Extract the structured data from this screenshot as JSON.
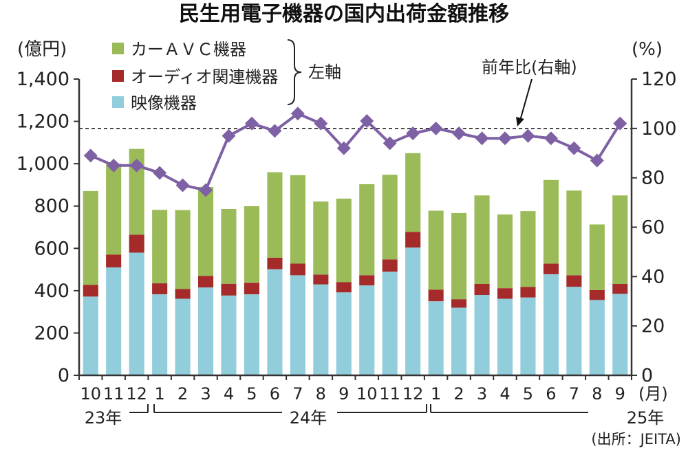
{
  "chart_data": {
    "type": "bar",
    "title": "民生用電子機器の国内出荷金額推移",
    "left_axis_label": "(億円)",
    "right_axis_label": "(%)",
    "left_ticks": [
      "0",
      "200",
      "400",
      "600",
      "800",
      "1,000",
      "1,200",
      "1,400"
    ],
    "right_ticks": [
      "0",
      "20",
      "40",
      "60",
      "80",
      "100",
      "120"
    ],
    "ylim": [
      0,
      1400
    ],
    "y2lim": [
      0,
      120
    ],
    "categories": [
      "10",
      "11",
      "12",
      "1",
      "2",
      "3",
      "4",
      "5",
      "6",
      "7",
      "8",
      "9",
      "10",
      "11",
      "12",
      "1",
      "2",
      "3",
      "4",
      "5",
      "6",
      "7",
      "8",
      "9"
    ],
    "month_unit": "(月)",
    "year_labels": [
      "23年",
      "24年",
      "25年"
    ],
    "stacked": true,
    "series": [
      {
        "name": "映像機器",
        "axis": "left",
        "color": "#92cddc",
        "values": [
          372,
          510,
          580,
          383,
          362,
          415,
          377,
          383,
          501,
          473,
          430,
          392,
          425,
          490,
          604,
          350,
          320,
          380,
          362,
          368,
          478,
          418,
          356,
          385
        ]
      },
      {
        "name": "オーディオ関連機器",
        "axis": "left",
        "color": "#a52a2a",
        "values": [
          55,
          60,
          85,
          52,
          46,
          55,
          56,
          54,
          55,
          55,
          46,
          48,
          48,
          58,
          74,
          55,
          40,
          52,
          50,
          50,
          50,
          55,
          47,
          47
        ]
      },
      {
        "name": "カーＡＶＣ機器",
        "axis": "left",
        "color": "#9bbb59",
        "values": [
          444,
          430,
          405,
          347,
          373,
          420,
          353,
          362,
          404,
          418,
          345,
          395,
          430,
          400,
          372,
          373,
          407,
          418,
          348,
          358,
          395,
          400,
          310,
          418
        ]
      },
      {
        "name": "前年比",
        "axis": "right",
        "type": "line",
        "color": "#7e60a4",
        "values": [
          89,
          85,
          85,
          82,
          77,
          75,
          97,
          102,
          99,
          106,
          102,
          92,
          103,
          94,
          98,
          100,
          98,
          96,
          96,
          97,
          96,
          92,
          87,
          102
        ]
      }
    ],
    "legend_bracket_label": "左軸",
    "line_annotation": "前年比(右軸)",
    "reference_line": {
      "axis": "right",
      "value": 100,
      "style": "dashed"
    },
    "source": "(出所：JEITA)"
  },
  "colors": {
    "line": "#7e60a4",
    "text": "#222222",
    "axis": "#333333"
  }
}
